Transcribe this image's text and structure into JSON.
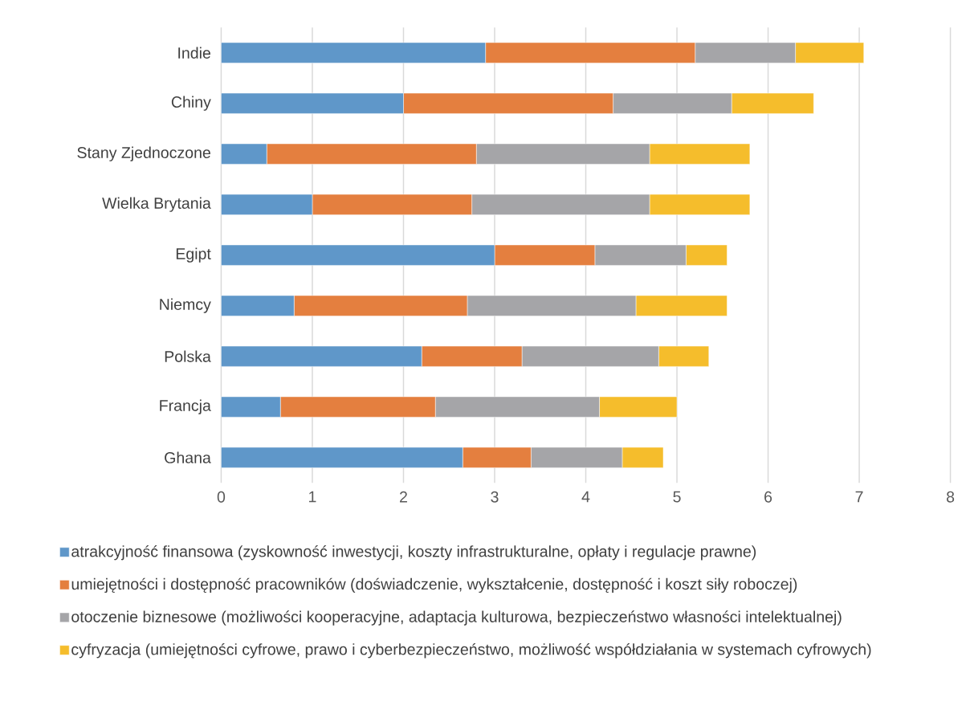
{
  "chart_data": {
    "type": "bar",
    "orientation": "horizontal",
    "stacked": true,
    "categories": [
      "Indie",
      "Chiny",
      "Stany Zjednoczone",
      "Wielka Brytania",
      "Egipt",
      "Niemcy",
      "Polska",
      "Francja",
      "Ghana"
    ],
    "series": [
      {
        "name": "atrakcyjność finansowa (zyskowność inwestycji, koszty infrastrukturalne, opłaty i regulacje prawne)",
        "color": "#5f97c9",
        "values": [
          2.9,
          2.0,
          0.5,
          1.0,
          3.0,
          0.8,
          2.2,
          0.65,
          2.65
        ]
      },
      {
        "name": "umiejętności i dostępność pracowników (doświadczenie, wykształcenie, dostępność i koszt siły roboczej)",
        "color": "#e47f3f",
        "values": [
          2.3,
          2.3,
          2.3,
          1.75,
          1.1,
          1.9,
          1.1,
          1.7,
          0.75
        ]
      },
      {
        "name": "otoczenie biznesowe (możliwości kooperacyjne, adaptacja kulturowa, bezpieczeństwo własności intelektualnej)",
        "color": "#a5a5a8",
        "values": [
          1.1,
          1.3,
          1.9,
          1.95,
          1.0,
          1.85,
          1.5,
          1.8,
          1.0
        ]
      },
      {
        "name": "cyfryzacja (umiejętności cyfrowe, prawo i cyberbezpieczeństwo, możliwość współdziałania w systemach cyfrowych)",
        "color": "#f5bd2c",
        "values": [
          0.75,
          0.9,
          1.1,
          1.1,
          0.45,
          1.0,
          0.55,
          0.85,
          0.45
        ]
      }
    ],
    "xlim": [
      0,
      8
    ],
    "xticks": [
      0,
      1,
      2,
      3,
      4,
      5,
      6,
      7,
      8
    ],
    "grid": "x",
    "legend": "bottom"
  }
}
